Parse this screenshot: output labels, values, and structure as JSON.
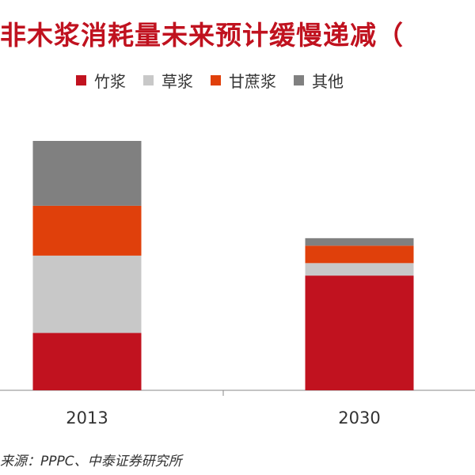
{
  "title": "非木浆消耗量未来预计缓慢递减（",
  "source": "来源：PPPC、中泰证券研究所",
  "colors": {
    "bamboo": "#c1121f",
    "straw": "#c8c8c8",
    "bagasse": "#e0400b",
    "other": "#808080"
  },
  "chart_data": {
    "type": "bar",
    "stacked": true,
    "categories": [
      "2013",
      "2030"
    ],
    "series": [
      {
        "name": "竹浆",
        "values": [
          23,
          46
        ]
      },
      {
        "name": "草浆",
        "values": [
          31,
          5
        ]
      },
      {
        "name": "甘蔗浆",
        "values": [
          20,
          7
        ]
      },
      {
        "name": "其他",
        "values": [
          26,
          3
        ]
      }
    ],
    "ylim": [
      0,
      100
    ],
    "legend": "top",
    "grid": false
  }
}
